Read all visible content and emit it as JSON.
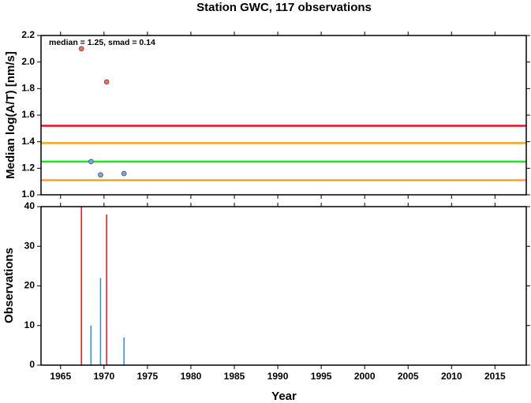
{
  "chart_data": [
    {
      "type": "scatter",
      "title": "Station GWC, 117 observations",
      "ylabel": "Median log(A/T) [nm/s]",
      "annotation": "median = 1.25, smad = 0.14",
      "x": [
        1967.4,
        1970.3,
        1968.5,
        1969.6,
        1972.3
      ],
      "values": [
        2.1,
        1.85,
        1.25,
        1.15,
        1.16
      ],
      "colors": [
        "#f26b5b",
        "#f26b5b",
        "#6fa8f0",
        "#6fa8f0",
        "#6fa8f0"
      ],
      "hlines": [
        {
          "value": 1.52,
          "color": "#e8131b"
        },
        {
          "value": 1.39,
          "color": "#f7a41d"
        },
        {
          "value": 1.25,
          "color": "#1ee61e"
        },
        {
          "value": 1.11,
          "color": "#f7a41d"
        }
      ],
      "xlim": [
        1962.75,
        2018.6
      ],
      "xticks": [
        1965,
        1970,
        1975,
        1980,
        1985,
        1990,
        1995,
        2000,
        2005,
        2010,
        2015
      ],
      "ylim": [
        1.0,
        2.2
      ],
      "yticks": [
        {
          "value": 1.0,
          "label": "1.0"
        },
        1.2,
        1.4,
        1.6,
        1.8,
        {
          "value": 2.0,
          "label": "2.0"
        },
        2.2
      ]
    },
    {
      "type": "bar",
      "ylabel": "Observations",
      "xlabel": "Year",
      "x": [
        1967.4,
        1970.3,
        1968.5,
        1969.6,
        1972.3
      ],
      "values": [
        40,
        38,
        10,
        22,
        7
      ],
      "colors": [
        "#e8131b",
        "#e8131b",
        "#2a8fd6",
        "#2a8fd6",
        "#2a8fd6"
      ],
      "xlim": [
        1962.75,
        2018.6
      ],
      "xticks": [
        1965,
        1970,
        1975,
        1980,
        1985,
        1990,
        1995,
        2000,
        2005,
        2010,
        2015
      ],
      "ylim": [
        0,
        40
      ],
      "yticks": [
        0,
        10,
        20,
        30,
        40
      ]
    }
  ]
}
